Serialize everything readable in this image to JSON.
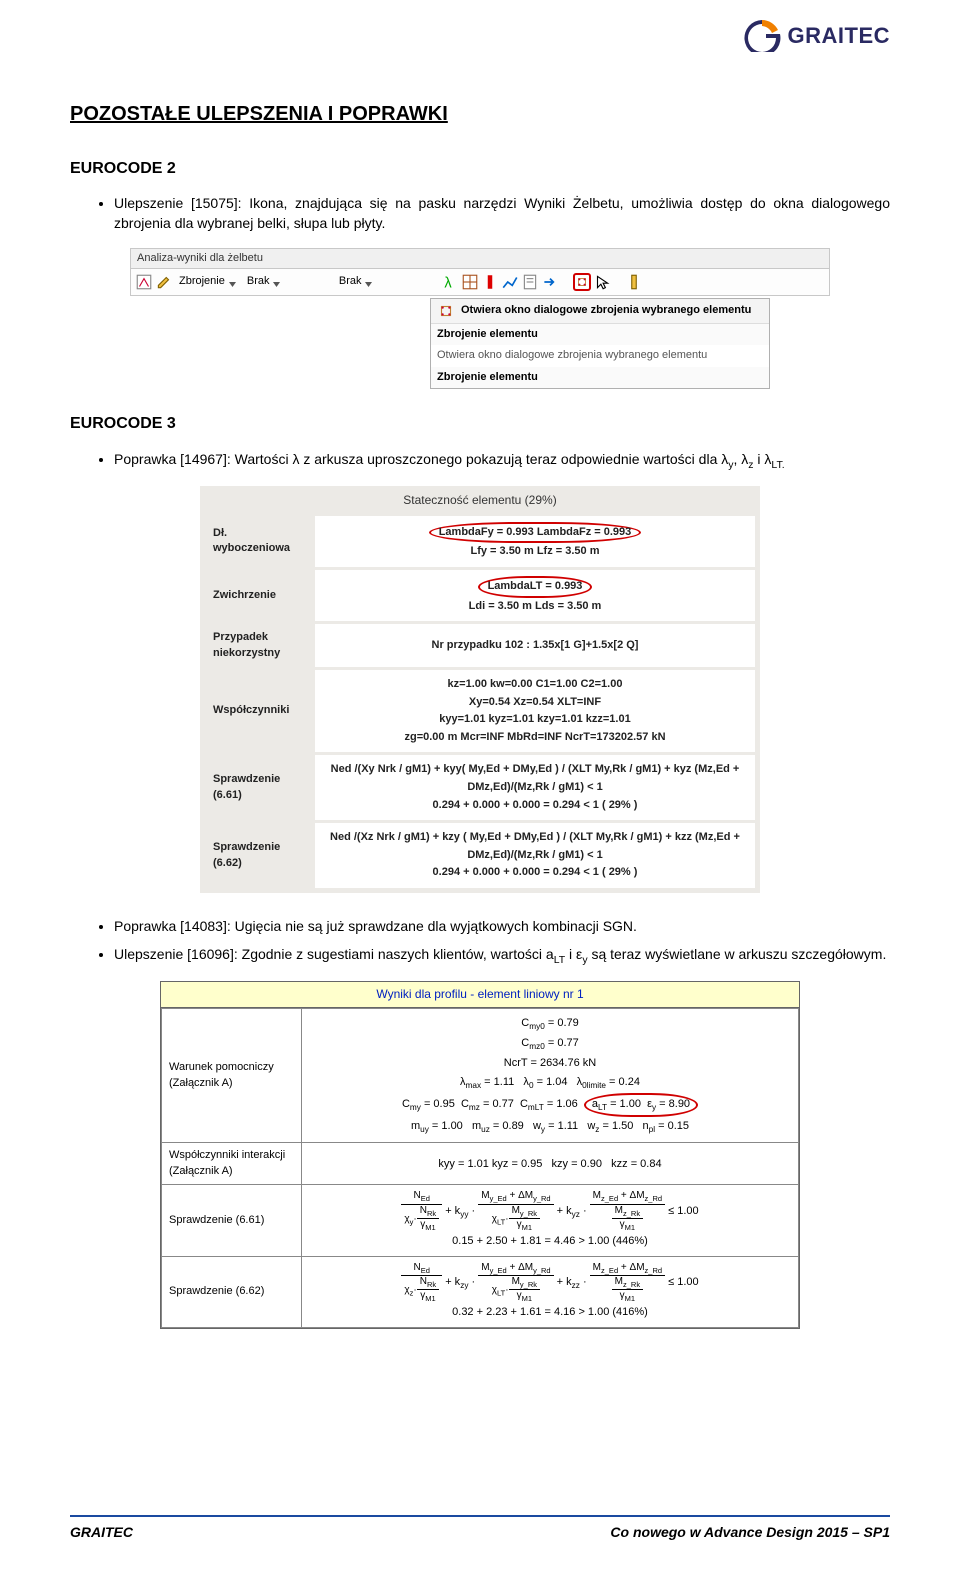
{
  "logo": {
    "name": "GRAITEC",
    "icon_color1": "#f08000",
    "icon_color2": "#2a2a62"
  },
  "title": "POZOSTAŁE ULEPSZENIA I POPRAWKI",
  "sections": {
    "ec2": {
      "heading": "EUROCODE 2",
      "bullet1": "Ulepszenie [15075]: Ikona, znajdująca się na pasku narzędzi Wyniki Żelbetu, umożliwia dostęp do okna dialogowego zbrojenia dla wybranej belki, słupa lub płyty."
    },
    "ec3": {
      "heading": "EUROCODE 3",
      "bullet1_pre": "Poprawka [14967]: Wartości λ z arkusza uproszczonego pokazują teraz odpowiednie wartości dla λ",
      "bullet1_sub1": "y",
      "bullet1_mid": ", λ",
      "bullet1_sub2": "z",
      "bullet1_mid2": " i λ",
      "bullet1_sub3": "LT.",
      "bullet2": "Poprawka [14083]: Ugięcia nie są już sprawdzane dla wyjątkowych kombinacji SGN.",
      "bullet3_pre": "Ulepszenie [16096]: Zgodnie z sugestiami naszych klientów, wartości a",
      "bullet3_sub1": "LT",
      "bullet3_mid": " i ε",
      "bullet3_sub2": "y",
      "bullet3_post": " są teraz wyświetlane w arkuszu szczegółowym."
    }
  },
  "toolbar": {
    "title": "Analiza-wyniki dla żelbetu",
    "item1": "Zbrojenie",
    "item2": "Brak",
    "item3": "Brak",
    "tooltip_head": "Otwiera okno dialogowe zbrojenia wybranego elementu",
    "tooltip_sub": "Zbrojenie elementu",
    "tooltip_body1": "Otwiera okno dialogowe zbrojenia wybranego elementu",
    "tooltip_body2": "Zbrojenie elementu"
  },
  "stability": {
    "header": "Stateczność elementu (29%)",
    "rows": [
      {
        "label": "Dł. wyboczeniowa",
        "lines": [
          "LambdaFy = 0.993  LambdaFz = 0.993",
          "Lfy = 3.50 m  Lfz = 3.50 m"
        ],
        "highlight": [
          0
        ]
      },
      {
        "label": "Zwichrzenie",
        "lines": [
          "LambdaLT = 0.993",
          "Ldi = 3.50 m  Lds = 3.50 m"
        ],
        "highlight": [
          0
        ]
      },
      {
        "label": "Przypadek niekorzystny",
        "lines": [
          "Nr przypadku 102 : 1.35x[1 G]+1.5x[2 Q]"
        ]
      },
      {
        "label": "Współczynniki",
        "lines": [
          "kz=1.00 kw=0.00 C1=1.00 C2=1.00",
          "Xy=0.54 Xz=0.54 XLT=INF",
          "kyy=1.01 kyz=1.01 kzy=1.01 kzz=1.01",
          "zg=0.00 m Mcr=INF MbRd=INF NcrT=173202.57 kN"
        ]
      },
      {
        "label": "Sprawdzenie (6.61)",
        "lines": [
          "Ned /(Xy Nrk / gM1) + kyy( My,Ed + DMy,Ed ) / (XLT My,Rk / gM1) + kyz (Mz,Ed + DMz,Ed)/(Mz,Rk / gM1) < 1",
          "0.294 + 0.000 + 0.000 = 0.294 < 1   ( 29% )"
        ]
      },
      {
        "label": "Sprawdzenie (6.62)",
        "lines": [
          "Ned /(Xz Nrk / gM1) + kzy ( My,Ed + DMy,Ed ) / (XLT My,Rk / gM1) + kzz (Mz,Ed + DMz,Ed)/(Mz,Rk / gM1) < 1",
          "0.294 + 0.000 + 0.000 = 0.294 < 1   ( 29% )"
        ]
      }
    ]
  },
  "results": {
    "title": "Wyniki dla profilu - element liniowy nr  1",
    "rows": [
      {
        "label": "Warunek pomocniczy (Załącznik A)",
        "lines": [
          "C<sub>my0</sub> = 0.79",
          "C<sub>mz0</sub> = 0.77",
          "NcrT = 2634.76 kN",
          "λ<sub>max</sub> = 1.11&nbsp;&nbsp;&nbsp;λ<sub>0</sub> = 1.04&nbsp;&nbsp;&nbsp;λ<sub>0limite</sub> = 0.24",
          "C<sub>my</sub> = 0.95&nbsp;&nbsp;C<sub>mz</sub> = 0.77&nbsp;&nbsp;C<sub>mLT</sub> = 1.06&nbsp;&nbsp;<span class=\"oval2\">a<sub>LT</sub> = 1.00&nbsp;&nbsp;ε<sub>y</sub> = 8.90</span>",
          "m<sub>uy</sub> = 1.00&nbsp;&nbsp;&nbsp;m<sub>uz</sub> = 0.89&nbsp;&nbsp;&nbsp;w<sub>y</sub> = 1.11&nbsp;&nbsp;&nbsp;w<sub>z</sub> = 1.50&nbsp;&nbsp;&nbsp;n<sub>pl</sub> = 0.15"
        ]
      },
      {
        "label": "Współczynniki interakcji (Załącznik A)",
        "lines": [
          "kyy = 1.01  kyz = 0.95&nbsp;&nbsp;&nbsp;kzy = 0.90&nbsp;&nbsp;&nbsp;kzz = 0.84"
        ]
      },
      {
        "label": "Sprawdzenie (6.61)",
        "formula": {
          "terms": [
            {
              "num": "N<sub>Ed</sub>",
              "den": "<span class=\"frac\"><span class=\"num\">N<sub>Rk</sub></span><span class=\"den\">γ<sub>M1</sub></span></span>",
              "chi": "χ<sub>y</sub>·"
            },
            {
              "k": "+ k<sub>yy</sub> ·",
              "num": "M<sub>y_Ed</sub> + ΔM<sub>y_Rd</sub>",
              "den": "<span class=\"frac\"><span class=\"num\">M<sub>y_Rk</sub></span><span class=\"den\">γ<sub>M1</sub></span></span>",
              "chi": "χ<sub>LT</sub>·"
            },
            {
              "k": "+ k<sub>yz</sub> ·",
              "num": "M<sub>z_Ed</sub> + ΔM<sub>z_Rd</sub>",
              "den": "<span class=\"frac\"><span class=\"num\">M<sub>z_Rk</sub></span><span class=\"den\">γ<sub>M1</sub></span></span>",
              "chi": ""
            }
          ],
          "tail": " ≤ 1.00",
          "result": "0.15 + 2.50 + 1.81 = 4.46 > 1.00 (446%)"
        }
      },
      {
        "label": "Sprawdzenie (6.62)",
        "formula": {
          "terms": [
            {
              "num": "N<sub>Ed</sub>",
              "den": "<span class=\"frac\"><span class=\"num\">N<sub>Rk</sub></span><span class=\"den\">γ<sub>M1</sub></span></span>",
              "chi": "χ<sub>z</sub>·"
            },
            {
              "k": "+ k<sub>zy</sub> ·",
              "num": "M<sub>y_Ed</sub> + ΔM<sub>y_Rd</sub>",
              "den": "<span class=\"frac\"><span class=\"num\">M<sub>y_Rk</sub></span><span class=\"den\">γ<sub>M1</sub></span></span>",
              "chi": "χ<sub>LT</sub>·"
            },
            {
              "k": "+ k<sub>zz</sub> ·",
              "num": "M<sub>z_Ed</sub> + ΔM<sub>z_Rd</sub>",
              "den": "<span class=\"frac\"><span class=\"num\">M<sub>z_Rk</sub></span><span class=\"den\">γ<sub>M1</sub></span></span>",
              "chi": ""
            }
          ],
          "tail": " ≤ 1.00",
          "result": "0.32 + 2.23 + 1.61 = 4.16 > 1.00 (416%)"
        }
      }
    ]
  },
  "footer": {
    "left": "GRAITEC",
    "right": "Co nowego w Advance Design 2015 – SP1"
  }
}
